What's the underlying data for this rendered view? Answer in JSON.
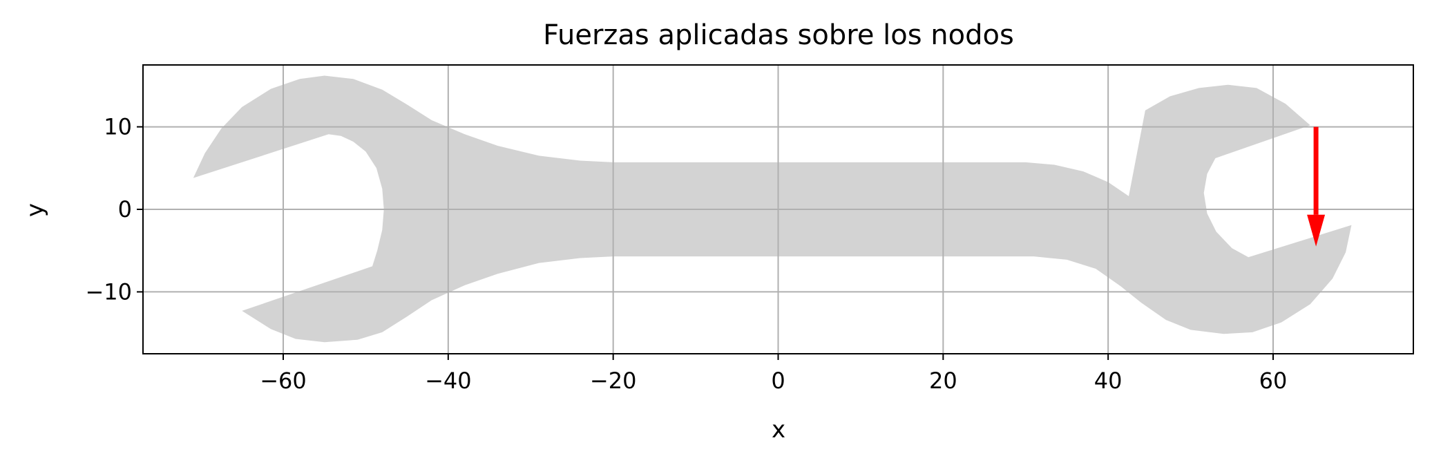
{
  "chart_data": {
    "type": "scatter",
    "title": "Fuerzas aplicadas sobre los nodos",
    "xlabel": "x",
    "ylabel": "y",
    "xlim": [
      -77,
      77
    ],
    "ylim": [
      -17.5,
      17.5
    ],
    "x_ticks": [
      -60,
      -40,
      -20,
      0,
      20,
      40,
      60
    ],
    "x_tick_labels": [
      "−60",
      "−40",
      "−20",
      "0",
      "20",
      "40",
      "60"
    ],
    "y_ticks": [
      -10,
      0,
      10
    ],
    "y_tick_labels": [
      "−10",
      "0",
      "10"
    ],
    "grid": true,
    "colors": {
      "mesh": "#d3d3d3",
      "force": "#ff0000",
      "grid": "#b0b0b0"
    },
    "series": [
      {
        "kind": "mesh-nodes",
        "outline": [
          [
            -70.9,
            3.8
          ],
          [
            -69.5,
            6.8
          ],
          [
            -67.5,
            9.8
          ],
          [
            -65,
            12.4
          ],
          [
            -61.5,
            14.6
          ],
          [
            -58,
            15.8
          ],
          [
            -55,
            16.2
          ],
          [
            -51.5,
            15.8
          ],
          [
            -48,
            14.5
          ],
          [
            -45,
            12.7
          ],
          [
            -42,
            10.8
          ],
          [
            -38,
            9.1
          ],
          [
            -34,
            7.7
          ],
          [
            -29,
            6.5
          ],
          [
            -24,
            5.9
          ],
          [
            -20,
            5.7
          ],
          [
            0,
            5.7
          ],
          [
            20,
            5.7
          ],
          [
            30,
            5.7
          ],
          [
            33.5,
            5.4
          ],
          [
            37,
            4.6
          ],
          [
            40,
            3.3
          ],
          [
            42.5,
            1.6
          ],
          [
            44.5,
            12
          ],
          [
            47.5,
            13.7
          ],
          [
            51,
            14.7
          ],
          [
            54.5,
            15.1
          ],
          [
            58,
            14.7
          ],
          [
            61.5,
            12.8
          ],
          [
            64.5,
            10.2
          ],
          [
            53,
            6.2
          ],
          [
            52,
            4.3
          ],
          [
            51.6,
            2
          ],
          [
            52,
            -0.5
          ],
          [
            53.1,
            -2.7
          ],
          [
            55,
            -4.7
          ],
          [
            57,
            -5.8
          ],
          [
            69.5,
            -1.9
          ],
          [
            68.8,
            -5.2
          ],
          [
            67.2,
            -8.4
          ],
          [
            64.5,
            -11.5
          ],
          [
            61,
            -13.7
          ],
          [
            57.5,
            -14.9
          ],
          [
            54,
            -15.1
          ],
          [
            50,
            -14.6
          ],
          [
            47,
            -13.4
          ],
          [
            44,
            -11.3
          ],
          [
            41.5,
            -9.3
          ],
          [
            38.5,
            -7.2
          ],
          [
            35,
            -6.1
          ],
          [
            31,
            -5.7
          ],
          [
            20,
            -5.7
          ],
          [
            0,
            -5.7
          ],
          [
            -20,
            -5.7
          ],
          [
            -24,
            -5.9
          ],
          [
            -29,
            -6.5
          ],
          [
            -34,
            -7.8
          ],
          [
            -38,
            -9.2
          ],
          [
            -42,
            -11
          ],
          [
            -45,
            -13
          ],
          [
            -48,
            -14.9
          ],
          [
            -51,
            -15.8
          ],
          [
            -55,
            -16.1
          ],
          [
            -58.5,
            -15.7
          ],
          [
            -61.5,
            -14.5
          ],
          [
            -65,
            -12.3
          ],
          [
            -49.2,
            -6.9
          ],
          [
            -48.6,
            -5
          ],
          [
            -48,
            -2.5
          ],
          [
            -47.8,
            0
          ],
          [
            -48,
            2.5
          ],
          [
            -48.7,
            5
          ],
          [
            -50,
            7
          ],
          [
            -51.5,
            8.2
          ],
          [
            -53,
            8.9
          ],
          [
            -54.5,
            9.1
          ]
        ]
      },
      {
        "kind": "force-vector",
        "x": 65.2,
        "y": 10,
        "dx": 0,
        "dy": -14.5
      }
    ]
  }
}
